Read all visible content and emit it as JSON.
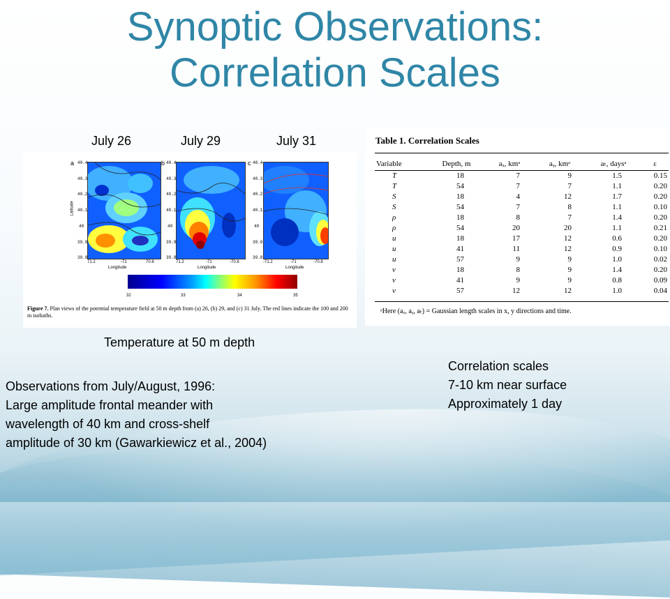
{
  "title": {
    "line1": "Synoptic Observations:",
    "line2": "Correlation Scales"
  },
  "dates": [
    "July 26",
    "July 29",
    "July 31"
  ],
  "figure": {
    "panels": [
      {
        "letter": "a",
        "yticks": [
          "40.4",
          "40.3",
          "40.2",
          "40.1",
          "40",
          "39.9",
          "39.8"
        ],
        "xticks": [
          "71.2",
          "-71",
          "70.8"
        ]
      },
      {
        "letter": "b",
        "yticks": [
          "40.4",
          "40.3",
          "40.2",
          "40.1",
          "40",
          "39.9",
          "39.8"
        ],
        "xticks": [
          "71.2",
          "-71",
          "-70.8"
        ]
      },
      {
        "letter": "c",
        "yticks": [
          "40.4",
          "40.3",
          "40.2",
          "40.1",
          "40",
          "39.9",
          "39.8"
        ],
        "xticks": [
          "-71.2",
          "-71",
          "-70.8"
        ]
      }
    ],
    "ylabel": "Latitude",
    "xlabel": "Longitude",
    "colorbar_ticks": [
      "32",
      "33",
      "34",
      "35"
    ],
    "caption_bold": "Figure 7.",
    "caption_text": "Plan views of the potential temperature field at 50 m depth from (a) 26, (b) 29, and (c) 31 July. The red lines indicate the 100 and 200 m isobaths."
  },
  "figure_label": "Temperature at 50 m depth",
  "table": {
    "title": "Table 1.  Correlation Scales",
    "headers": [
      "Variable",
      "Depth, m",
      "aₓ, kmᵃ",
      "aᵧ, kmᵃ",
      "aₜ, daysᵃ",
      "ε"
    ],
    "rows": [
      [
        "T",
        "18",
        "7",
        "9",
        "1.5",
        "0.15"
      ],
      [
        "T",
        "54",
        "7",
        "7",
        "1.1",
        "0.20"
      ],
      [
        "S",
        "18",
        "4",
        "12",
        "1.7",
        "0.20"
      ],
      [
        "S",
        "54",
        "7",
        "8",
        "1.1",
        "0.10"
      ],
      [
        "ρ",
        "18",
        "8",
        "7",
        "1.4",
        "0.20"
      ],
      [
        "ρ",
        "54",
        "20",
        "20",
        "1.1",
        "0.21"
      ],
      [
        "u",
        "18",
        "17",
        "12",
        "0.6",
        "0.20"
      ],
      [
        "u",
        "41",
        "11",
        "12",
        "0.9",
        "0.10"
      ],
      [
        "u",
        "57",
        "9",
        "9",
        "1.0",
        "0.02"
      ],
      [
        "v",
        "18",
        "8",
        "9",
        "1.4",
        "0.20"
      ],
      [
        "v",
        "41",
        "9",
        "9",
        "0.8",
        "0.09"
      ],
      [
        "v",
        "57",
        "12",
        "12",
        "1.0",
        "0.04"
      ]
    ],
    "footnote": "ᵃHere (aₓ, aᵧ, aₜ) = Gaussian length scales in x, y directions and time."
  },
  "correlation_notes": [
    "Correlation scales",
    "7-10 km near surface",
    "Approximately 1 day"
  ],
  "observations": [
    "Observations from July/August, 1996:",
    "Large amplitude frontal meander with",
    "wavelength of 40 km and cross-shelf",
    "amplitude of 30 km (Gawarkiewicz et al., 2004)"
  ]
}
